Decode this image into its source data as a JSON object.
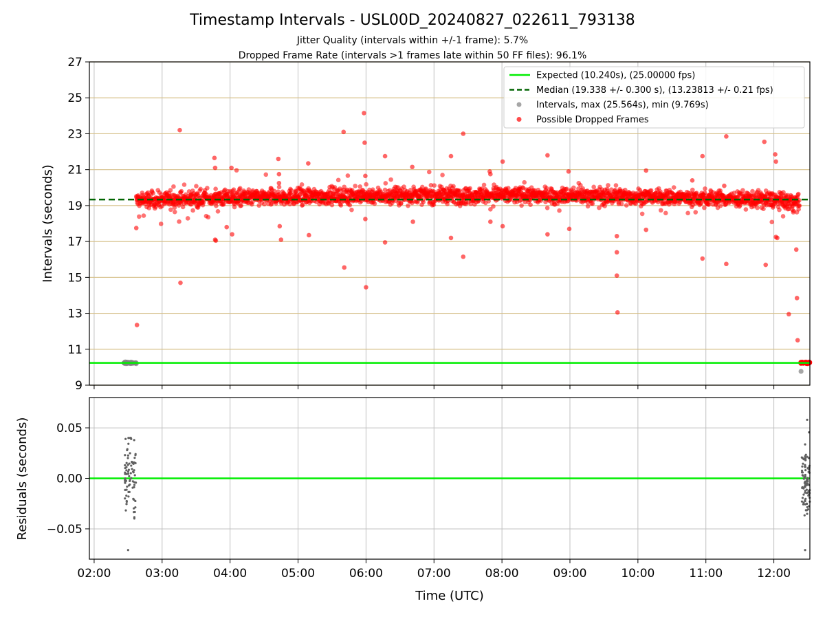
{
  "chart_data": [
    {
      "type": "scatter",
      "title": "Timestamp Intervals - USL00D_20240827_022611_793138",
      "subtitle_1": "Jitter Quality (intervals within +/-1 frame): 5.7%",
      "subtitle_2": "Dropped Frame Rate (intervals >1 frames late within 50 FF files): 96.1%",
      "xlabel": "",
      "ylabel": "Intervals (seconds)",
      "xlim_hours": [
        1.93,
        12.53
      ],
      "ylim": [
        9,
        27
      ],
      "yticks": [
        9,
        11,
        13,
        15,
        17,
        19,
        21,
        23,
        25,
        27
      ],
      "ytick_labels": [
        "9",
        "11",
        "13",
        "15",
        "17",
        "19",
        "21",
        "23",
        "25",
        "27"
      ],
      "grid": true,
      "legend_placement": "top-right",
      "colors": {
        "expected": "#00ee00",
        "median": "#006400",
        "intervals": "#808080",
        "dropped": "#ff0000",
        "hgrid": "#d6c08a",
        "vgrid": "#c0c0c0"
      },
      "legend": [
        {
          "label": "Expected (10.240s), (25.00000 fps)",
          "kind": "line"
        },
        {
          "label": "Median (19.338 +/- 0.300 s), (13.23813 +/- 0.21 fps)",
          "kind": "dashed"
        },
        {
          "label": "Intervals, max (25.564s), min (9.769s)",
          "kind": "gray-dot"
        },
        {
          "label": "Possible Dropped Frames",
          "kind": "red-dot"
        }
      ],
      "expected_interval": 10.24,
      "median_interval": 19.338,
      "normal_intervals": {
        "x_hours": [
          2.44,
          2.46,
          2.48,
          2.5,
          2.52,
          2.54,
          2.56,
          2.58,
          2.6,
          2.62,
          12.4
        ],
        "y": [
          10.24,
          10.24,
          10.25,
          10.23,
          10.24,
          10.24,
          10.25,
          10.23,
          10.24,
          10.2,
          9.77
        ]
      },
      "dropped_band": {
        "x_start_hours": 2.62,
        "x_end_hours": 12.38
      },
      "dropped_outliers": {
        "x_hours": [
          2.62,
          2.63,
          3.26,
          3.27,
          3.77,
          3.78,
          3.79,
          3.78,
          3.95,
          4.02,
          4.03,
          4.71,
          4.72,
          4.72,
          4.73,
          4.75,
          5.15,
          5.16,
          5.67,
          5.68,
          5.97,
          5.98,
          5.99,
          5.99,
          6.0,
          6.28,
          6.28,
          6.68,
          6.69,
          7.25,
          7.25,
          7.43,
          7.43,
          7.82,
          7.83,
          7.83,
          8.01,
          8.01,
          8.67,
          8.67,
          8.98,
          8.99,
          9.69,
          9.69,
          9.69,
          9.7,
          10.12,
          10.12,
          10.95,
          10.95,
          10.8,
          11.27,
          11.3,
          11.3,
          11.86,
          11.88,
          12.02,
          12.03,
          12.05,
          12.03,
          12.22,
          12.33,
          12.34,
          12.35
        ],
        "y": [
          17.75,
          12.35,
          23.2,
          14.7,
          21.65,
          21.1,
          17.05,
          17.1,
          17.8,
          21.1,
          17.4,
          21.6,
          20.75,
          20.25,
          17.85,
          17.1,
          21.35,
          17.35,
          23.1,
          15.55,
          24.15,
          22.5,
          20.65,
          18.25,
          14.45,
          21.75,
          16.95,
          21.15,
          18.1,
          21.75,
          17.2,
          23.0,
          16.15,
          20.9,
          20.75,
          18.1,
          21.45,
          17.85,
          21.8,
          17.4,
          20.9,
          17.7,
          17.3,
          16.4,
          15.1,
          13.05,
          20.95,
          17.65,
          21.75,
          16.05,
          20.4,
          20.1,
          22.85,
          15.75,
          22.55,
          15.7,
          21.85,
          21.45,
          17.2,
          17.25,
          12.95,
          16.55,
          13.85,
          11.5
        ]
      },
      "dropped_end_cluster": {
        "x_start_hours": 12.39,
        "x_end_hours": 12.53,
        "y": 10.25
      }
    },
    {
      "type": "scatter",
      "title": "",
      "xlabel": "Time (UTC)",
      "ylabel": "Residuals (seconds)",
      "xlim_hours": [
        1.93,
        12.53
      ],
      "ylim": [
        -0.08,
        0.08
      ],
      "yticks": [
        -0.05,
        0.0,
        0.05
      ],
      "ytick_labels": [
        "−0.05",
        "0.00",
        "0.05"
      ],
      "x_ticks_hours": [
        2,
        3,
        4,
        5,
        6,
        7,
        8,
        9,
        10,
        11,
        12
      ],
      "x_tick_labels": [
        "02:00",
        "03:00",
        "04:00",
        "05:00",
        "06:00",
        "07:00",
        "08:00",
        "09:00",
        "10:00",
        "11:00",
        "12:00"
      ],
      "grid": true,
      "colors": {
        "zero_line": "#00ee00",
        "points": "#606060"
      },
      "residual_clusters": [
        {
          "x_start_hours": 2.45,
          "x_end_hours": 2.62,
          "y_min": -0.071,
          "y_max": 0.04
        },
        {
          "x_start_hours": 12.41,
          "x_end_hours": 12.53,
          "y_min": -0.071,
          "y_max": 0.058
        }
      ]
    }
  ]
}
